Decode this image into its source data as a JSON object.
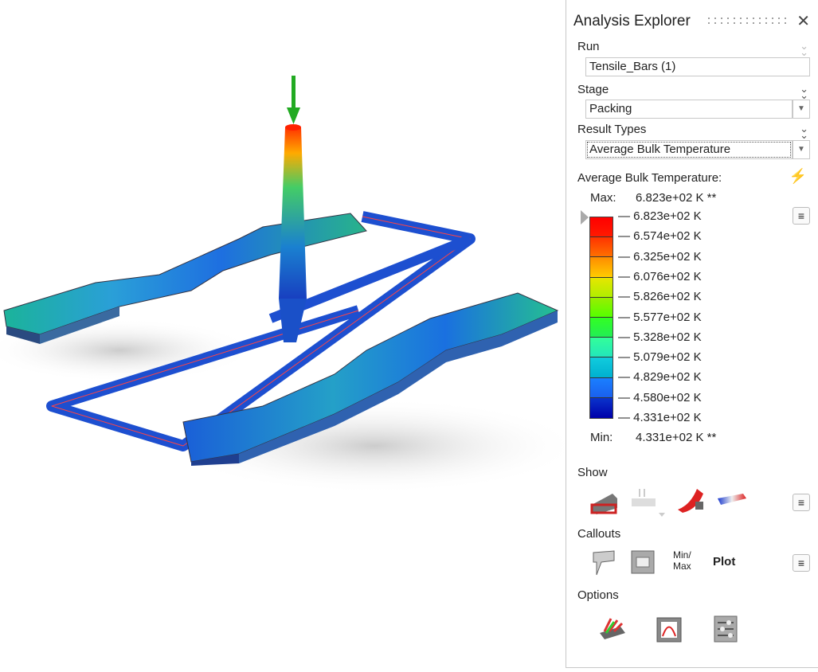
{
  "panel": {
    "title": "Analysis Explorer",
    "run": {
      "label": "Run",
      "value": "Tensile_Bars (1)"
    },
    "stage": {
      "label": "Stage",
      "value": "Packing"
    },
    "result_types": {
      "label": "Result Types",
      "value": "Average Bulk Temperature"
    },
    "legend": {
      "title": "Average Bulk Temperature:",
      "max_label": "Max:",
      "max_value": "6.823e+02 K **",
      "min_label": "Min:",
      "min_value": "4.331e+02 K **",
      "ticks": [
        "6.823e+02 K",
        "6.574e+02 K",
        "6.325e+02 K",
        "6.076e+02 K",
        "5.826e+02 K",
        "5.577e+02 K",
        "5.328e+02 K",
        "5.079e+02 K",
        "4.829e+02 K",
        "4.580e+02 K",
        "4.331e+02 K"
      ],
      "band_colors": [
        [
          "#ff0000",
          "#ff1a00"
        ],
        [
          "#ff3300",
          "#ff7000"
        ],
        [
          "#ff8c00",
          "#ffcc00"
        ],
        [
          "#e6e600",
          "#b0ee00"
        ],
        [
          "#99ee00",
          "#55ff00"
        ],
        [
          "#33ff22",
          "#22ee55"
        ],
        [
          "#33ff99",
          "#22e6bb"
        ],
        [
          "#11ccdd",
          "#00b0d0"
        ],
        [
          "#1a80ff",
          "#1a60ee"
        ],
        [
          "#0a33cc",
          "#0000aa"
        ]
      ]
    },
    "show": {
      "label": "Show",
      "icons": [
        "shaded-part-icon",
        "mesh-components-icon",
        "red-surface-icon",
        "gradient-bar-icon"
      ]
    },
    "callouts": {
      "label": "Callouts",
      "icons": [
        "callout-balloon-icon",
        "table-callout-icon"
      ],
      "minmax": "Min/\nMax",
      "plot": "Plot"
    },
    "options": {
      "label": "Options",
      "icons": [
        "color-options-icon",
        "plot-options-icon",
        "settings-sliders-icon"
      ]
    }
  }
}
